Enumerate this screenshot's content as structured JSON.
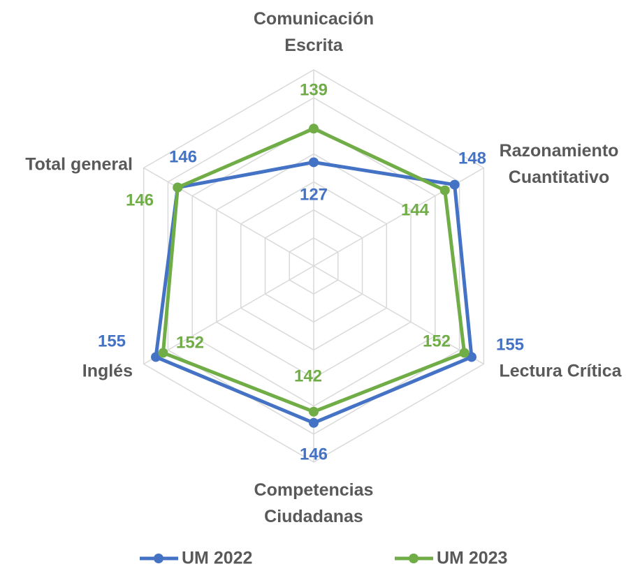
{
  "chart_data": {
    "type": "radar",
    "categories": [
      "Comunicación Escrita",
      "Razonamiento Cuantitativo",
      "Lectura Crítica",
      "Competencias Ciudadanas",
      "Inglés",
      "Total general"
    ],
    "series": [
      {
        "name": "UM 2022",
        "color": "#4472c4",
        "values": [
          127,
          148,
          155,
          146,
          155,
          146
        ]
      },
      {
        "name": "UM 2023",
        "color": "#70ad47",
        "values": [
          139,
          144,
          152,
          142,
          152,
          146
        ]
      }
    ],
    "rlim": [
      90,
      160
    ],
    "rticks": [
      90,
      100,
      110,
      120,
      130,
      140,
      150,
      160
    ],
    "grid": true,
    "legend": "bottom"
  }
}
